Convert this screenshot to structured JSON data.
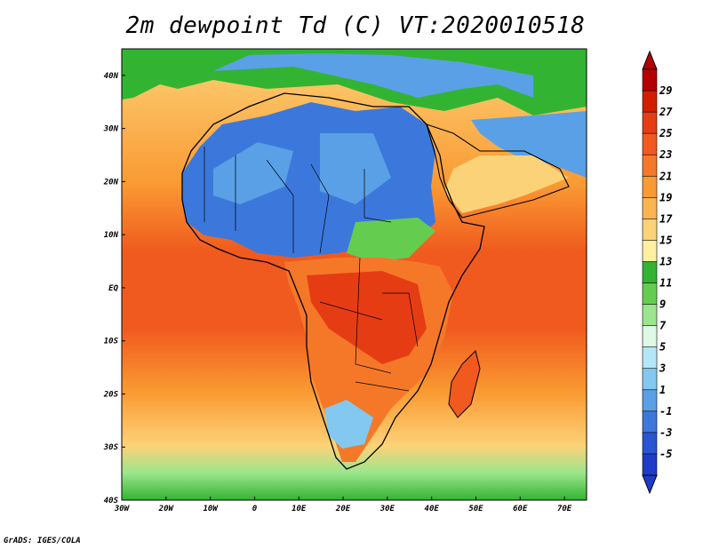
{
  "title": "2m dewpoint Td (C) VT:2020010518",
  "credit": "GrADS: IGES/COLA",
  "map": {
    "lon_range": [
      -30,
      75
    ],
    "lat_range": [
      -40,
      45
    ],
    "lon_ticks": [
      {
        "value": -30,
        "label": "30W"
      },
      {
        "value": -20,
        "label": "20W"
      },
      {
        "value": -10,
        "label": "10W"
      },
      {
        "value": 0,
        "label": "0"
      },
      {
        "value": 10,
        "label": "10E"
      },
      {
        "value": 20,
        "label": "20E"
      },
      {
        "value": 30,
        "label": "30E"
      },
      {
        "value": 40,
        "label": "40E"
      },
      {
        "value": 50,
        "label": "50E"
      },
      {
        "value": 60,
        "label": "60E"
      },
      {
        "value": 70,
        "label": "70E"
      }
    ],
    "lat_ticks": [
      {
        "value": 40,
        "label": "40N"
      },
      {
        "value": 30,
        "label": "30N"
      },
      {
        "value": 20,
        "label": "20N"
      },
      {
        "value": 10,
        "label": "10N"
      },
      {
        "value": 0,
        "label": "EQ"
      },
      {
        "value": -10,
        "label": "10S"
      },
      {
        "value": -20,
        "label": "20S"
      },
      {
        "value": -30,
        "label": "30S"
      },
      {
        "value": -40,
        "label": "40S"
      }
    ]
  },
  "colorbar": {
    "labels": [
      "29",
      "27",
      "25",
      "23",
      "21",
      "19",
      "17",
      "15",
      "13",
      "11",
      "9",
      "7",
      "5",
      "3",
      "1",
      "-1",
      "-3",
      "-5"
    ],
    "colors": [
      "#b40000",
      "#d21e00",
      "#e63c14",
      "#f05a1e",
      "#f57828",
      "#fa9a32",
      "#fbb450",
      "#fcd278",
      "#fff0a0",
      "#32b432",
      "#64cd50",
      "#9be68c",
      "#dcfae6",
      "#b4e6fa",
      "#82c8f0",
      "#5aa0e6",
      "#3c78dc",
      "#2855d2",
      "#1e3cc8"
    ]
  }
}
